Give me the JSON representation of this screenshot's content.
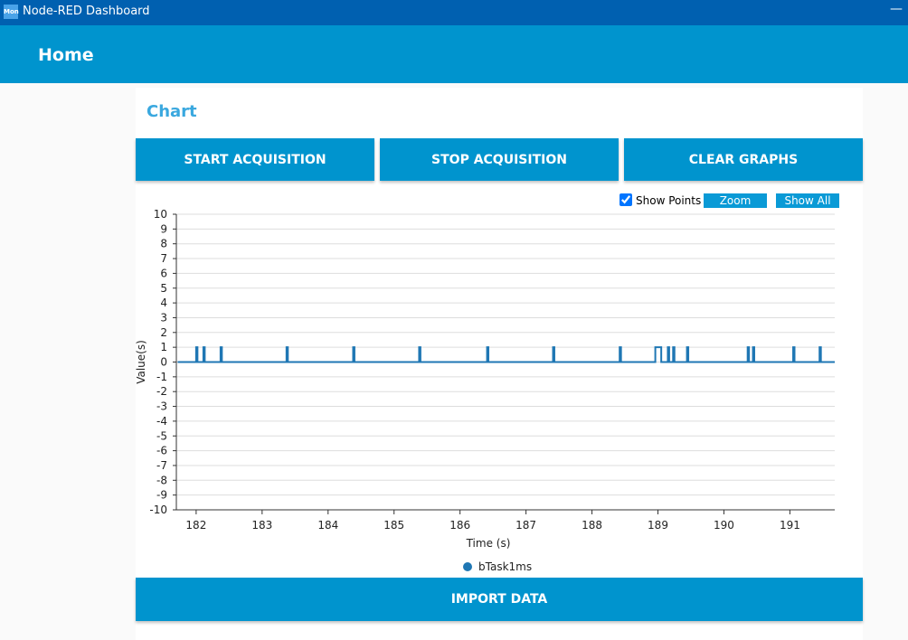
{
  "window": {
    "title": "Node-RED Dashboard",
    "icon": "Mon"
  },
  "toolbar": {
    "title": "Home"
  },
  "card": {
    "title": "Chart",
    "buttons": [
      "START ACQUISITION",
      "STOP ACQUISITION",
      "CLEAR GRAPHS"
    ]
  },
  "chart_controls": {
    "show_points": "Show Points",
    "zoom": "Zoom",
    "show_all": "Show All"
  },
  "chart_data": {
    "type": "line",
    "x_label": "Time (s)",
    "y_label": "Value(s)",
    "xlim": [
      181.7,
      191.68
    ],
    "ylim": [
      -10,
      10
    ],
    "xticks": [
      182,
      183,
      184,
      185,
      186,
      187,
      188,
      189,
      190,
      191
    ],
    "yticks": [
      -10,
      -9,
      -8,
      -7,
      -6,
      -5,
      -4,
      -3,
      -2,
      -1,
      0,
      1,
      2,
      3,
      4,
      5,
      6,
      7,
      8,
      9,
      10
    ],
    "grid": true,
    "series": [
      {
        "name": "bTask1ms",
        "color": "#1f77b4",
        "x": [
          181.72,
          182.0,
          182.0,
          182.02,
          182.02,
          182.11,
          182.11,
          182.13,
          182.13,
          182.37,
          182.37,
          182.39,
          182.39,
          183.37,
          183.37,
          183.39,
          183.39,
          184.38,
          184.38,
          184.4,
          184.4,
          185.38,
          185.38,
          185.4,
          185.4,
          186.41,
          186.41,
          186.43,
          186.43,
          187.41,
          187.41,
          187.43,
          187.43,
          188.42,
          188.42,
          188.44,
          188.44,
          188.96,
          188.96,
          189.05,
          189.05,
          189.15,
          189.15,
          189.17,
          189.17,
          189.23,
          189.23,
          189.25,
          189.25,
          189.44,
          189.44,
          189.46,
          189.46,
          190.36,
          190.36,
          190.38,
          190.38,
          190.44,
          190.44,
          190.46,
          190.46,
          191.05,
          191.05,
          191.07,
          191.07,
          191.45,
          191.45,
          191.47,
          191.47,
          191.68
        ],
        "values": [
          0,
          0,
          1,
          1,
          0,
          0,
          1,
          1,
          0,
          0,
          1,
          1,
          0,
          0,
          1,
          1,
          0,
          0,
          1,
          1,
          0,
          0,
          1,
          1,
          0,
          0,
          1,
          1,
          0,
          0,
          1,
          1,
          0,
          0,
          1,
          1,
          0,
          0,
          1,
          1,
          0,
          0,
          1,
          1,
          0,
          0,
          1,
          1,
          0,
          0,
          1,
          1,
          0,
          0,
          1,
          1,
          0,
          0,
          1,
          1,
          0,
          0,
          1,
          1,
          0,
          0,
          1,
          1,
          0,
          0
        ]
      }
    ]
  },
  "footer_button": "IMPORT DATA"
}
